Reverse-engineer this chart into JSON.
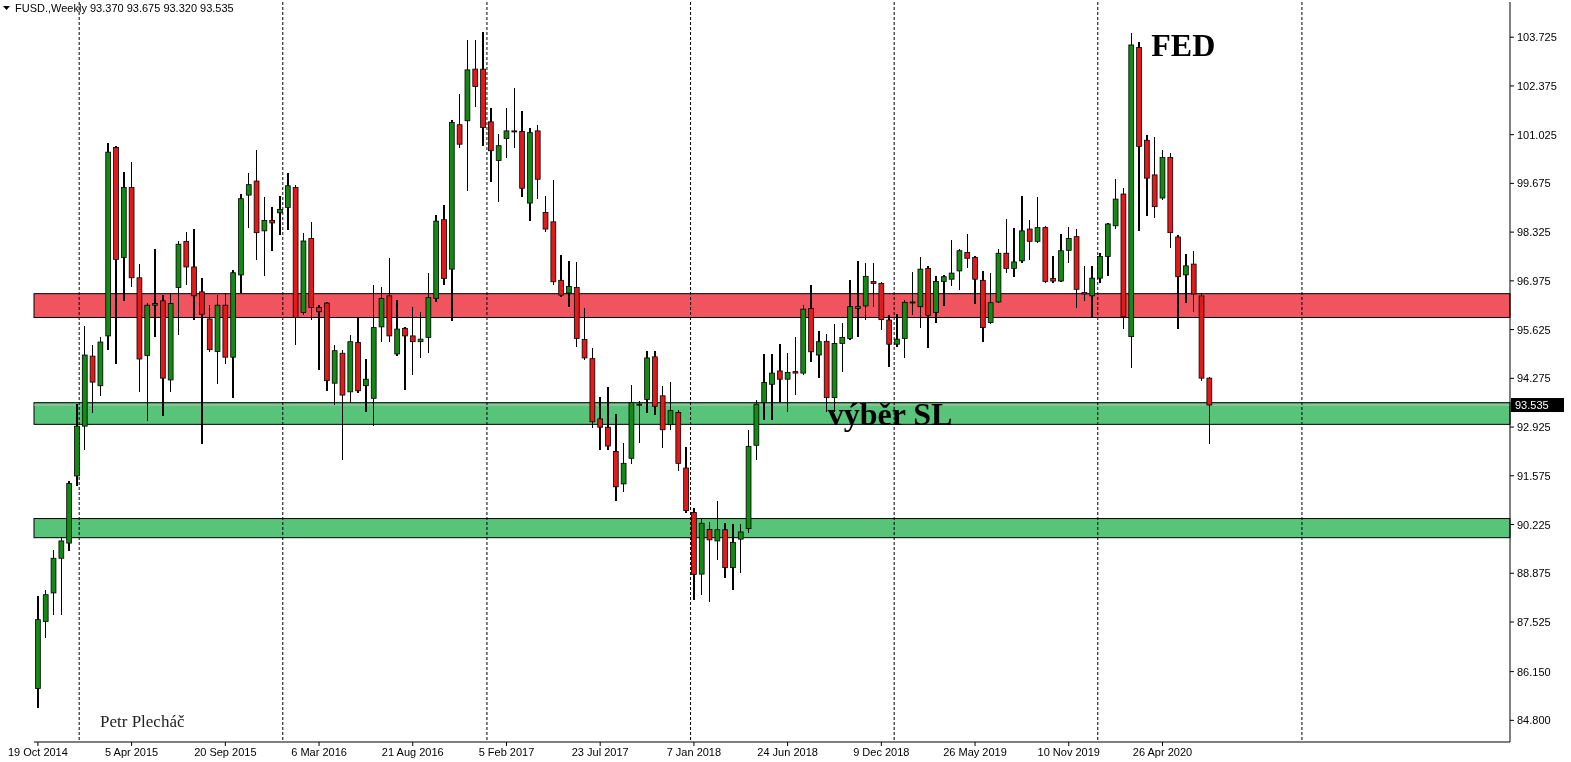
{
  "chart_data": {
    "type": "candlestick",
    "title": "FUSD.,Weekly 93.370 93.675 93.320 93.535",
    "x": [
      "2014-10-19",
      "2014-11-02",
      "2014-11-16",
      "2014-11-30",
      "2014-12-14",
      "2014-12-28",
      "2015-01-11",
      "2015-01-25",
      "2015-02-08",
      "2015-02-22",
      "2015-03-08",
      "2015-03-22",
      "2015-04-05",
      "2015-04-19",
      "2015-05-03",
      "2015-05-17",
      "2015-05-31",
      "2015-06-14",
      "2015-06-28",
      "2015-07-12",
      "2015-07-26",
      "2015-08-09",
      "2015-08-23",
      "2015-09-06",
      "2015-09-20",
      "2015-10-04",
      "2015-10-18",
      "2015-11-01",
      "2015-11-15",
      "2015-11-29",
      "2015-12-13",
      "2015-12-27",
      "2016-01-10",
      "2016-01-24",
      "2016-02-07",
      "2016-02-21",
      "2016-03-06",
      "2016-03-20",
      "2016-04-03",
      "2016-04-17",
      "2016-05-01",
      "2016-05-15",
      "2016-05-29",
      "2016-06-12",
      "2016-06-26",
      "2016-07-10",
      "2016-07-24",
      "2016-08-07",
      "2016-08-21",
      "2016-09-04",
      "2016-09-18",
      "2016-10-02",
      "2016-10-16",
      "2016-10-30",
      "2016-11-13",
      "2016-11-27",
      "2016-12-11",
      "2016-12-25",
      "2017-01-08",
      "2017-01-22",
      "2017-02-05",
      "2017-02-19",
      "2017-03-05",
      "2017-03-19",
      "2017-04-02",
      "2017-04-16",
      "2017-04-30",
      "2017-05-14",
      "2017-05-28",
      "2017-06-11",
      "2017-06-25",
      "2017-07-09",
      "2017-07-23",
      "2017-08-06",
      "2017-08-20",
      "2017-09-03",
      "2017-09-17",
      "2017-10-01",
      "2017-10-15",
      "2017-10-29",
      "2017-11-12",
      "2017-11-26",
      "2017-12-10",
      "2017-12-24",
      "2018-01-07",
      "2018-01-21",
      "2018-02-04",
      "2018-02-18",
      "2018-03-04",
      "2018-03-18",
      "2018-04-01",
      "2018-04-15",
      "2018-04-29",
      "2018-05-13",
      "2018-05-27",
      "2018-06-10",
      "2018-06-24",
      "2018-07-08",
      "2018-07-22",
      "2018-08-05",
      "2018-08-19",
      "2018-09-02",
      "2018-09-16",
      "2018-09-30",
      "2018-10-14",
      "2018-10-28",
      "2018-11-11",
      "2018-11-25",
      "2018-12-09",
      "2018-12-23",
      "2019-01-06",
      "2019-01-20",
      "2019-02-03",
      "2019-02-17",
      "2019-03-03",
      "2019-03-17",
      "2019-03-31",
      "2019-04-14",
      "2019-04-28",
      "2019-05-12",
      "2019-05-26",
      "2019-06-09",
      "2019-06-23",
      "2019-07-07",
      "2019-07-21",
      "2019-08-04",
      "2019-08-18",
      "2019-09-01",
      "2019-09-15",
      "2019-09-29",
      "2019-10-13",
      "2019-10-27",
      "2019-11-10",
      "2019-11-24",
      "2019-12-08",
      "2019-12-22",
      "2020-01-05",
      "2020-01-19",
      "2020-02-02",
      "2020-02-16",
      "2020-03-01",
      "2020-03-15",
      "2020-03-29",
      "2020-04-12",
      "2020-04-26",
      "2020-05-10",
      "2020-05-24",
      "2020-06-07",
      "2020-06-21",
      "2020-07-05",
      "2020-07-19"
    ],
    "ohlc": [
      [
        85.68,
        88.23,
        85.15,
        87.59
      ],
      [
        87.54,
        88.39,
        87.11,
        88.28
      ],
      [
        88.33,
        89.5,
        87.75,
        89.29
      ],
      [
        89.29,
        89.87,
        87.75,
        89.77
      ],
      [
        89.71,
        91.41,
        89.5,
        91.36
      ],
      [
        91.57,
        93.54,
        91.31,
        92.95
      ],
      [
        92.95,
        95.71,
        92.31,
        94.92
      ],
      [
        94.89,
        95.18,
        93.32,
        94.17
      ],
      [
        94.07,
        95.39,
        93.8,
        95.28
      ],
      [
        95.45,
        100.77,
        95.07,
        100.54
      ],
      [
        100.67,
        100.7,
        94.7,
        97.57
      ],
      [
        97.62,
        99.96,
        96.45,
        99.56
      ],
      [
        99.56,
        100.24,
        96.83,
        97.06
      ],
      [
        97.06,
        97.41,
        93.91,
        94.81
      ],
      [
        94.91,
        96.35,
        93.11,
        96.3
      ],
      [
        96.3,
        97.83,
        95.45,
        96.35
      ],
      [
        96.42,
        96.56,
        93.24,
        94.28
      ],
      [
        94.23,
        96.61,
        93.91,
        96.35
      ],
      [
        96.79,
        98.05,
        95.5,
        97.99
      ],
      [
        98.07,
        98.31,
        96.88,
        97.36
      ],
      [
        97.36,
        98.4,
        95.92,
        96.56
      ],
      [
        96.67,
        97.04,
        92.47,
        96.05
      ],
      [
        95.92,
        96.3,
        95.02,
        95.07
      ],
      [
        95.02,
        96.56,
        94.15,
        96.3
      ],
      [
        96.3,
        96.61,
        94.7,
        94.86
      ],
      [
        94.86,
        97.25,
        93.75,
        97.2
      ],
      [
        97.14,
        99.37,
        96.67,
        99.25
      ],
      [
        99.35,
        99.93,
        98.47,
        99.64
      ],
      [
        99.74,
        100.59,
        97.57,
        98.31
      ],
      [
        98.36,
        99.29,
        97.14,
        98.65
      ],
      [
        98.65,
        99.0,
        97.83,
        98.58
      ],
      [
        98.86,
        99.32,
        98.26,
        98.95
      ],
      [
        99.01,
        99.93,
        98.41,
        99.61
      ],
      [
        99.56,
        99.61,
        95.22,
        95.96
      ],
      [
        96.1,
        98.27,
        96.05,
        98.08
      ],
      [
        98.15,
        98.59,
        95.91,
        96.24
      ],
      [
        96.24,
        96.28,
        94.53,
        96.12
      ],
      [
        96.36,
        96.38,
        93.93,
        94.21
      ],
      [
        94.14,
        95.17,
        93.56,
        95.04
      ],
      [
        94.97,
        95.04,
        92.03,
        93.81
      ],
      [
        93.9,
        95.45,
        93.61,
        95.29
      ],
      [
        95.27,
        95.96,
        93.88,
        93.93
      ],
      [
        94.07,
        94.78,
        93.35,
        94.25
      ],
      [
        93.72,
        96.84,
        92.96,
        95.68
      ],
      [
        95.7,
        96.79,
        95.31,
        96.49
      ],
      [
        96.56,
        97.59,
        95.29,
        95.45
      ],
      [
        94.95,
        96.42,
        94.9,
        95.64
      ],
      [
        95.66,
        95.68,
        93.97,
        95.45
      ],
      [
        95.45,
        96.24,
        94.39,
        95.29
      ],
      [
        95.29,
        96.1,
        94.85,
        95.36
      ],
      [
        95.41,
        97.16,
        94.99,
        96.51
      ],
      [
        96.49,
        98.78,
        96.42,
        98.63
      ],
      [
        98.67,
        99.06,
        96.88,
        97.04
      ],
      [
        97.3,
        101.41,
        95.87,
        101.36
      ],
      [
        101.3,
        102.12,
        100.67,
        100.76
      ],
      [
        101.41,
        103.63,
        99.47,
        102.82
      ],
      [
        102.84,
        103.63,
        101.8,
        102.36
      ],
      [
        102.84,
        103.84,
        100.72,
        101.22
      ],
      [
        101.38,
        101.74,
        99.74,
        100.58
      ],
      [
        100.31,
        101.02,
        99.18,
        100.72
      ],
      [
        100.92,
        101.74,
        100.41,
        101.13
      ],
      [
        101.13,
        102.29,
        100.67,
        101.1
      ],
      [
        101.11,
        101.67,
        99.33,
        99.54
      ],
      [
        99.13,
        101.18,
        98.64,
        101.08
      ],
      [
        101.13,
        101.26,
        99.25,
        99.79
      ],
      [
        98.87,
        99.31,
        98.36,
        98.41
      ],
      [
        98.61,
        99.76,
        96.89,
        96.95
      ],
      [
        96.99,
        97.67,
        96.54,
        96.58
      ],
      [
        96.64,
        97.5,
        96.27,
        96.82
      ],
      [
        96.79,
        97.48,
        95.17,
        95.38
      ],
      [
        95.35,
        96.2,
        94.8,
        94.84
      ],
      [
        94.82,
        95.1,
        92.92,
        93.07
      ],
      [
        93.15,
        93.74,
        92.3,
        92.92
      ],
      [
        92.92,
        94.01,
        92.3,
        92.4
      ],
      [
        92.25,
        93.28,
        90.89,
        91.27
      ],
      [
        91.35,
        92.46,
        91.14,
        91.92
      ],
      [
        92.06,
        94.08,
        91.92,
        93.6
      ],
      [
        93.53,
        93.63,
        92.51,
        93.56
      ],
      [
        93.69,
        95.02,
        93.33,
        94.84
      ],
      [
        94.87,
        95.02,
        93.28,
        93.5
      ],
      [
        93.79,
        94.05,
        92.37,
        92.85
      ],
      [
        92.99,
        94.15,
        92.86,
        93.38
      ],
      [
        93.33,
        93.38,
        91.74,
        91.92
      ],
      [
        91.79,
        92.35,
        90.56,
        90.61
      ],
      [
        90.56,
        90.66,
        88.14,
        88.84
      ],
      [
        88.85,
        90.39,
        88.29,
        90.26
      ],
      [
        90.09,
        90.28,
        88.11,
        89.8
      ],
      [
        89.77,
        90.85,
        89.26,
        90.08
      ],
      [
        90.08,
        90.26,
        88.76,
        89.03
      ],
      [
        89.03,
        90.23,
        88.43,
        89.73
      ],
      [
        89.82,
        90.23,
        88.89,
        90.02
      ],
      [
        90.11,
        92.82,
        90.0,
        92.39
      ],
      [
        92.42,
        93.65,
        92.03,
        93.56
      ],
      [
        93.6,
        94.94,
        93.14,
        94.16
      ],
      [
        94.11,
        94.92,
        93.14,
        94.42
      ],
      [
        94.48,
        95.22,
        93.65,
        94.25
      ],
      [
        94.25,
        94.97,
        93.37,
        94.44
      ],
      [
        94.46,
        95.41,
        93.84,
        94.42
      ],
      [
        94.42,
        96.28,
        94.39,
        96.19
      ],
      [
        96.21,
        96.84,
        94.76,
        95.01
      ],
      [
        94.92,
        95.56,
        94.3,
        95.29
      ],
      [
        95.3,
        95.47,
        93.37,
        93.74
      ],
      [
        93.74,
        95.75,
        93.37,
        95.24
      ],
      [
        95.24,
        95.78,
        94.46,
        95.41
      ],
      [
        95.38,
        96.98,
        95.36,
        96.26
      ],
      [
        96.21,
        97.5,
        95.45,
        96.26
      ],
      [
        96.28,
        97.44,
        95.91,
        97.1
      ],
      [
        96.96,
        97.46,
        96.26,
        96.9
      ],
      [
        96.9,
        96.93,
        95.64,
        95.9
      ],
      [
        95.89,
        96.01,
        94.62,
        95.22
      ],
      [
        95.22,
        96.05,
        95.17,
        95.36
      ],
      [
        95.38,
        96.42,
        94.85,
        96.38
      ],
      [
        96.39,
        97.21,
        96.05,
        96.37
      ],
      [
        96.26,
        97.62,
        95.68,
        97.3
      ],
      [
        97.32,
        97.37,
        95.13,
        96.02
      ],
      [
        96.1,
        97.09,
        95.84,
        96.96
      ],
      [
        96.96,
        97.11,
        96.3,
        97.09
      ],
      [
        97.02,
        98.08,
        96.84,
        97.19
      ],
      [
        97.25,
        97.83,
        96.74,
        97.81
      ],
      [
        97.76,
        98.24,
        97.34,
        97.6
      ],
      [
        97.62,
        97.65,
        96.36,
        97.02
      ],
      [
        96.99,
        97.22,
        95.31,
        95.68
      ],
      [
        95.82,
        97.16,
        95.8,
        96.37
      ],
      [
        96.39,
        97.83,
        96.37,
        97.74
      ],
      [
        97.74,
        98.68,
        97.21,
        97.32
      ],
      [
        97.32,
        98.42,
        97.11,
        97.5
      ],
      [
        97.53,
        99.31,
        97.48,
        98.36
      ],
      [
        98.41,
        98.64,
        97.58,
        98.07
      ],
      [
        98.07,
        99.28,
        98.04,
        98.45
      ],
      [
        98.45,
        98.47,
        96.93,
        96.96
      ],
      [
        97.04,
        97.65,
        96.93,
        96.97
      ],
      [
        96.97,
        98.24,
        96.96,
        97.81
      ],
      [
        97.82,
        98.45,
        97.5,
        98.15
      ],
      [
        98.2,
        98.4,
        96.25,
        96.74
      ],
      [
        96.65,
        97.36,
        96.44,
        96.61
      ],
      [
        96.56,
        97.36,
        95.96,
        97.05
      ],
      [
        97.05,
        97.73,
        96.93,
        97.65
      ],
      [
        97.65,
        98.56,
        97.14,
        98.55
      ],
      [
        98.5,
        99.79,
        98.43,
        99.24
      ],
      [
        99.38,
        99.54,
        95.66,
        95.98
      ],
      [
        95.43,
        103.83,
        94.57,
        103.51
      ],
      [
        103.44,
        103.58,
        98.38,
        100.7
      ],
      [
        100.87,
        100.99,
        98.78,
        99.82
      ],
      [
        99.91,
        100.95,
        98.73,
        99.03
      ],
      [
        99.27,
        100.58,
        99.24,
        100.39
      ],
      [
        100.39,
        100.5,
        97.9,
        98.31
      ],
      [
        98.19,
        98.22,
        95.66,
        97.09
      ],
      [
        97.14,
        97.71,
        96.38,
        97.39
      ],
      [
        97.44,
        97.79,
        96.14,
        96.61
      ],
      [
        96.56,
        96.61,
        94.22,
        94.28
      ],
      [
        94.28,
        94.28,
        92.47,
        93.535
      ]
    ],
    "colors": [
      "#138a13",
      "#138a13",
      "#138a13",
      "#138a13",
      "#138a13",
      "#138a13",
      "#138a13",
      "#e31a1a",
      "#138a13",
      "#138a13",
      "#e31a1a",
      "#138a13",
      "#e31a1a",
      "#e31a1a",
      "#138a13",
      "#138a13",
      "#e31a1a",
      "#138a13",
      "#138a13",
      "#e31a1a",
      "#e31a1a",
      "#e31a1a",
      "#e31a1a",
      "#138a13",
      "#e31a1a",
      "#138a13",
      "#138a13",
      "#138a13",
      "#e31a1a",
      "#138a13",
      "#e31a1a",
      "#138a13",
      "#138a13",
      "#e31a1a",
      "#138a13",
      "#e31a1a",
      "#e31a1a",
      "#e31a1a",
      "#138a13",
      "#e31a1a",
      "#138a13",
      "#e31a1a",
      "#138a13",
      "#138a13",
      "#138a13",
      "#e31a1a",
      "#138a13",
      "#e31a1a",
      "#e31a1a",
      "#138a13",
      "#138a13",
      "#138a13",
      "#e31a1a",
      "#138a13",
      "#e31a1a",
      "#138a13",
      "#e31a1a",
      "#e31a1a",
      "#e31a1a",
      "#138a13",
      "#138a13",
      "#e31a1a",
      "#e31a1a",
      "#138a13",
      "#e31a1a",
      "#e31a1a",
      "#e31a1a",
      "#e31a1a",
      "#138a13",
      "#e31a1a",
      "#e31a1a",
      "#e31a1a",
      "#e31a1a",
      "#e31a1a",
      "#e31a1a",
      "#138a13",
      "#138a13",
      "#138a13",
      "#138a13",
      "#e31a1a",
      "#e31a1a",
      "#138a13",
      "#e31a1a",
      "#e31a1a",
      "#e31a1a",
      "#138a13",
      "#e31a1a",
      "#138a13",
      "#e31a1a",
      "#138a13",
      "#138a13",
      "#138a13",
      "#138a13",
      "#138a13",
      "#138a13",
      "#e31a1a",
      "#138a13",
      "#e31a1a",
      "#138a13",
      "#e31a1a",
      "#138a13",
      "#e31a1a",
      "#138a13",
      "#138a13",
      "#138a13",
      "#138a13",
      "#138a13",
      "#e31a1a",
      "#e31a1a",
      "#e31a1a",
      "#138a13",
      "#138a13",
      "#e31a1a",
      "#138a13",
      "#e31a1a",
      "#138a13",
      "#138a13",
      "#138a13",
      "#138a13",
      "#e31a1a",
      "#e31a1a",
      "#e31a1a",
      "#138a13",
      "#138a13",
      "#e31a1a",
      "#138a13",
      "#138a13",
      "#e31a1a",
      "#138a13",
      "#e31a1a",
      "#e31a1a",
      "#138a13",
      "#138a13",
      "#e31a1a",
      "#e31a1a",
      "#138a13",
      "#138a13",
      "#138a13",
      "#138a13",
      "#e31a1a",
      "#138a13",
      "#e31a1a",
      "#e31a1a",
      "#e31a1a",
      "#138a13",
      "#e31a1a",
      "#e31a1a",
      "#138a13",
      "#e31a1a",
      "#e31a1a",
      "#e31a1a"
    ],
    "xlim": [
      "2014-10-12",
      "2022-01-09"
    ],
    "ylim": [
      84.2,
      104.7
    ],
    "xticks": [
      {
        "value": "2014-10-19",
        "label": "19 Oct 2014"
      },
      {
        "value": "2015-04-05",
        "label": "5 Apr 2015"
      },
      {
        "value": "2015-09-20",
        "label": "20 Sep 2015"
      },
      {
        "value": "2016-03-06",
        "label": "6 Mar 2016"
      },
      {
        "value": "2016-08-21",
        "label": "21 Aug 2016"
      },
      {
        "value": "2017-02-05",
        "label": "5 Feb 2017"
      },
      {
        "value": "2017-07-23",
        "label": "23 Jul 2017"
      },
      {
        "value": "2018-01-07",
        "label": "7 Jan 2018"
      },
      {
        "value": "2018-06-24",
        "label": "24 Jun 2018"
      },
      {
        "value": "2018-12-09",
        "label": "9 Dec 2018"
      },
      {
        "value": "2019-05-26",
        "label": "26 May 2019"
      },
      {
        "value": "2019-11-10",
        "label": "10 Nov 2019"
      },
      {
        "value": "2020-04-26",
        "label": "26 Apr 2020"
      }
    ],
    "yticks": [
      103.725,
      102.375,
      101.025,
      99.675,
      98.325,
      96.975,
      95.625,
      94.275,
      92.925,
      91.575,
      90.225,
      88.875,
      87.525,
      {
        "value": 86.15,
        "label": "86.150"
      },
      {
        "value": 84.8,
        "label": "84.800"
      }
    ],
    "ref_lines": [
      {
        "axis": "y",
        "value": 93.535,
        "label": "93.535",
        "color": "#c0c0c0",
        "line_style": "solid"
      },
      {
        "axis": "x",
        "value": "2015-01-01",
        "color": "#000000",
        "line_style": "dotted"
      },
      {
        "axis": "x",
        "value": "2016-01-01",
        "color": "#000000",
        "line_style": "dotted"
      },
      {
        "axis": "x",
        "value": "2017-01-01",
        "color": "#000000",
        "line_style": "dotted"
      },
      {
        "axis": "x",
        "value": "2018-01-01",
        "color": "#000000",
        "line_style": "dotted"
      },
      {
        "axis": "x",
        "value": "2019-01-01",
        "color": "#000000",
        "line_style": "dotted"
      },
      {
        "axis": "x",
        "value": "2020-01-01",
        "color": "#000000",
        "line_style": "dotted"
      },
      {
        "axis": "x",
        "value": "2021-01-01",
        "color": "#000000",
        "line_style": "dotted"
      }
    ],
    "bands": [
      {
        "axis": "y",
        "from": 95.96,
        "to": 96.62,
        "color": "#f0545e"
      },
      {
        "axis": "y",
        "from": 93.0,
        "to": 93.6,
        "color": "#58c479",
        "label": "výběr SL"
      },
      {
        "axis": "y",
        "from": 89.86,
        "to": 90.39,
        "color": "#58c479"
      }
    ],
    "annotations": [
      {
        "text": "FED",
        "x": "2020-03-01",
        "y": 103.83
      },
      "Petr Plecháč"
    ]
  }
}
